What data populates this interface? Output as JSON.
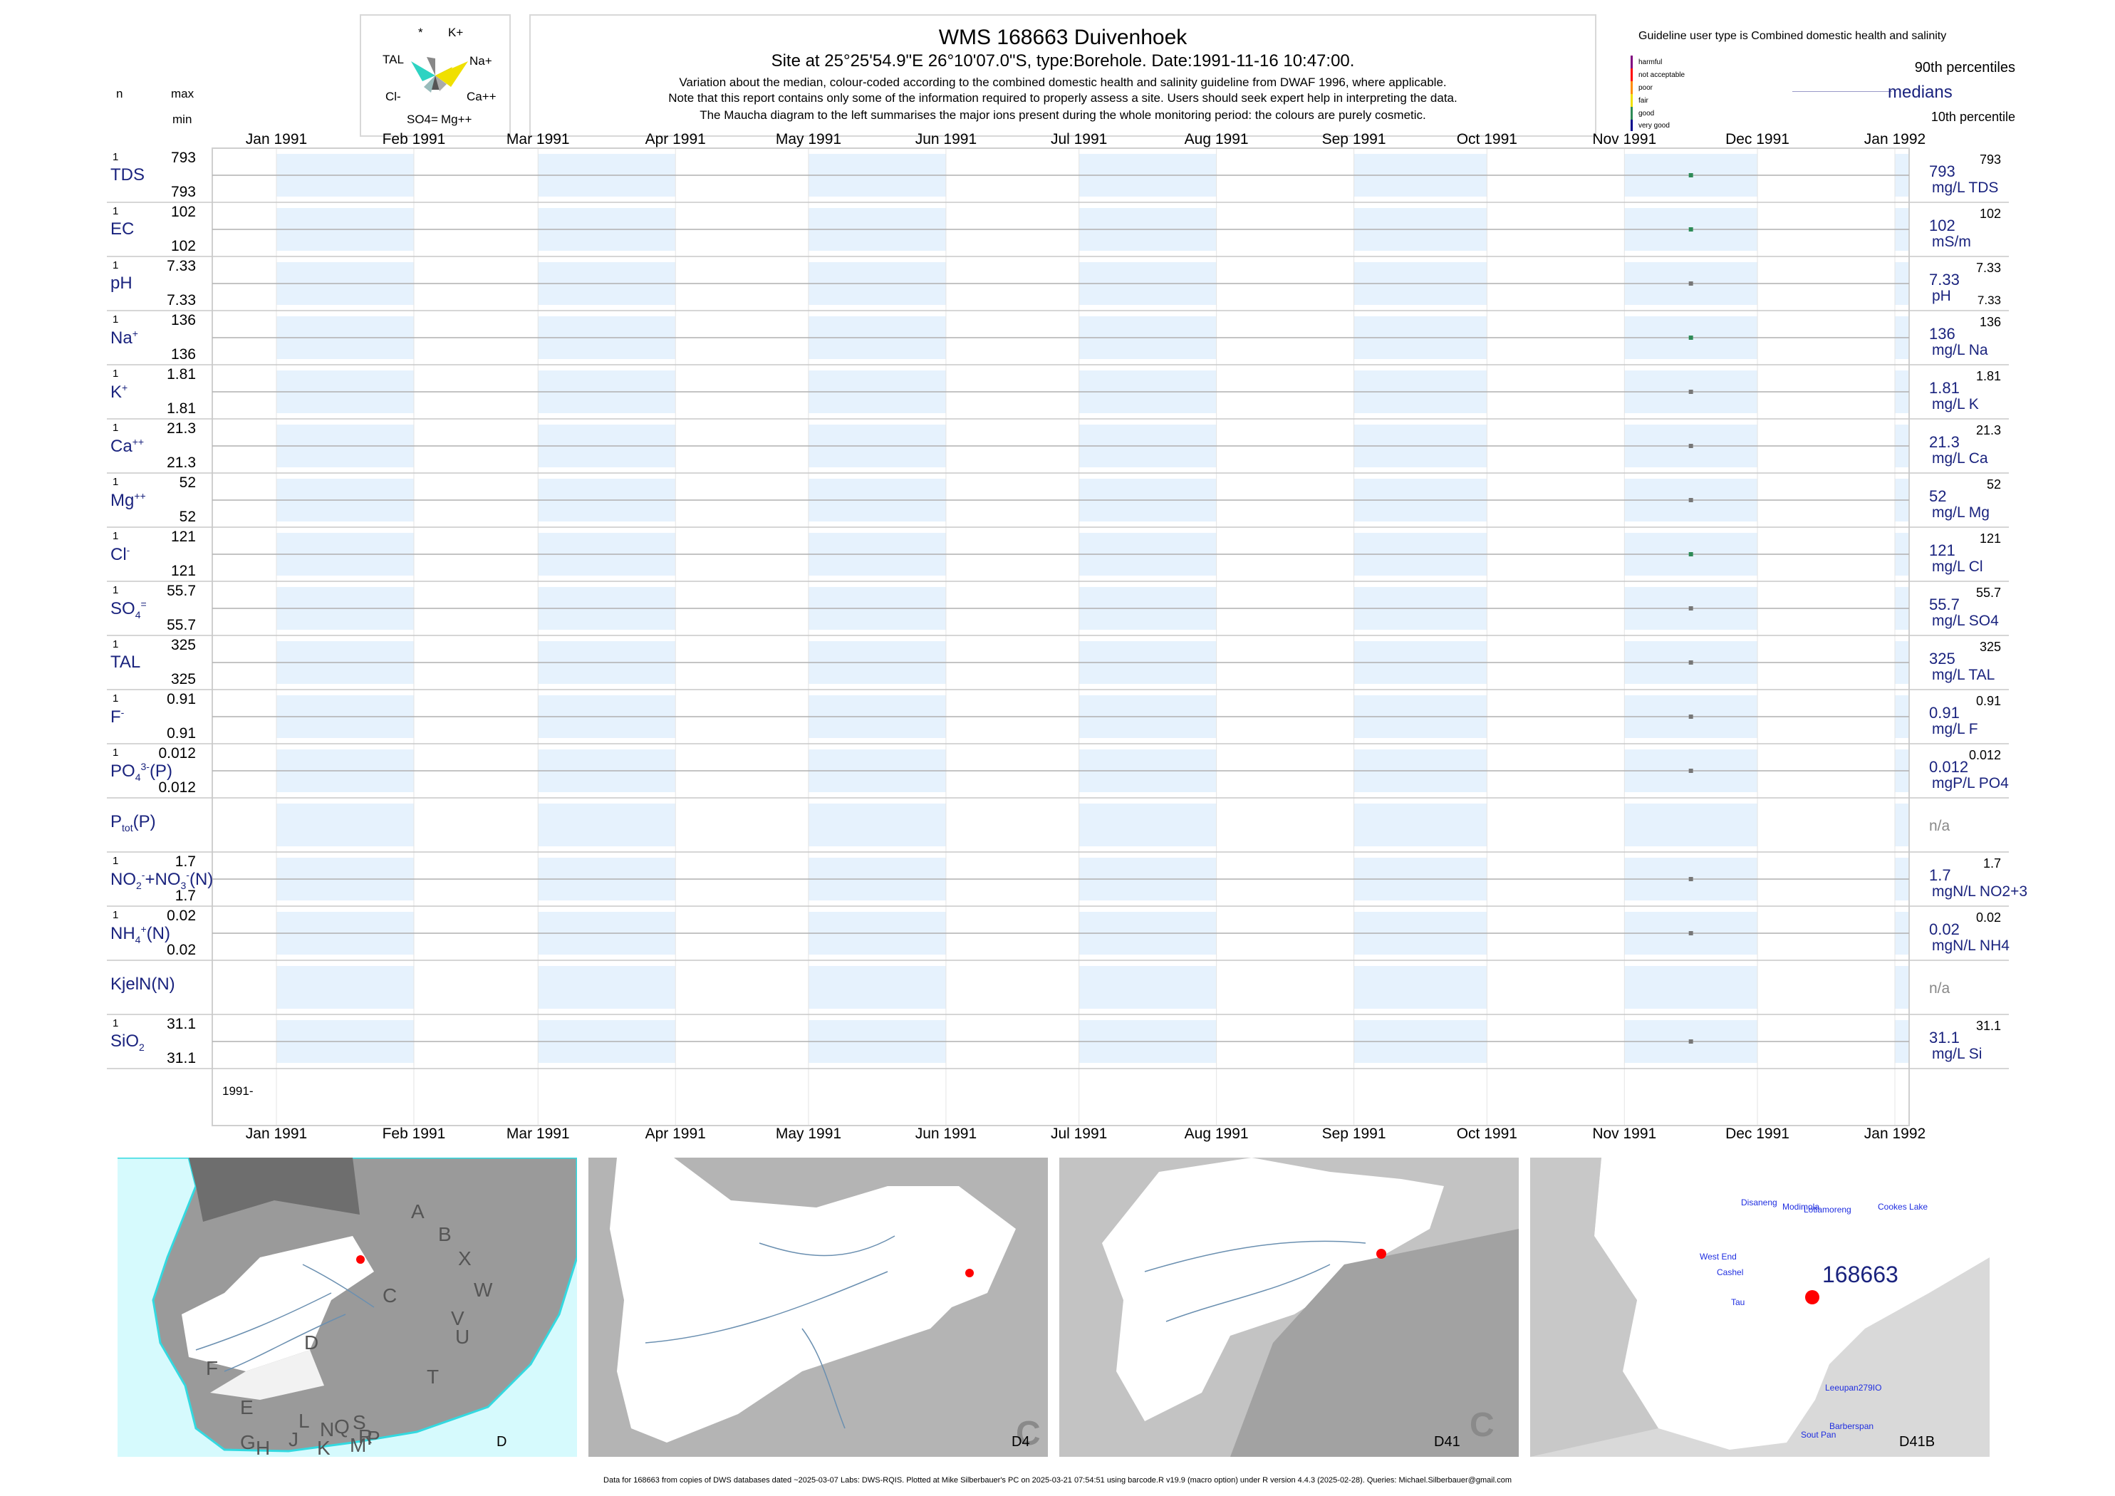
{
  "header": {
    "title": "WMS 168663  Duivenhoek",
    "subtitle": "Site at 25°25'54.9\"E 26°10'07.0\"S, type:Borehole. Date:1991-11-16 10:47:00.",
    "note1": "Variation about the median,  colour-coded according to the combined domestic health and salinity guideline from DWAF 1996, where applicable.",
    "note2": "Note that this report contains only some of the information required to properly assess a site. Users should seek expert help in interpreting the data.",
    "note3": "The Maucha diagram to the left summarises the major ions present during the whole monitoring period: the colours are purely cosmetic."
  },
  "maucha": {
    "labels": [
      "*",
      "K+",
      "TAL",
      "Na+",
      "Cl-",
      "Ca++",
      "SO4=",
      "Mg++"
    ]
  },
  "left_axis": {
    "n": "n",
    "max": "max",
    "min": "min"
  },
  "legend": {
    "guideline": "Guideline user type is Combined domestic health and salinity",
    "classes": [
      "harmful",
      "not acceptable",
      "poor",
      "fair",
      "good",
      "very good"
    ],
    "class_colors": [
      "#800080",
      "#ff0000",
      "#ff8c00",
      "#f0e000",
      "#2e8b57",
      "#00008b"
    ],
    "p90": "90th percentiles",
    "median": "medians",
    "p10": "10th percentile"
  },
  "chart_data": {
    "type": "line",
    "x_axis_months": [
      "Jan 1991",
      "Feb 1991",
      "Mar 1991",
      "Apr 1991",
      "May 1991",
      "Jun 1991",
      "Jul 1991",
      "Aug 1991",
      "Sep 1991",
      "Oct 1991",
      "Nov 1991",
      "Dec 1991",
      "Jan 1992"
    ],
    "x_range": [
      "1991-01-01",
      "1992-01-01"
    ],
    "sample_date": "1991-11-16",
    "year_label": "1991-",
    "series": [
      {
        "name": "TDS",
        "html": "TDS",
        "n": "1",
        "max": "793",
        "min": "793",
        "median": "793",
        "p90": "793",
        "p10": "",
        "unit": "mg/L TDS",
        "value": 793,
        "color": "#2e8b57"
      },
      {
        "name": "EC",
        "html": "EC",
        "n": "1",
        "max": "102",
        "min": "102",
        "median": "102",
        "p90": "102",
        "p10": "",
        "unit": "mS/m",
        "value": 102,
        "color": "#2e8b57"
      },
      {
        "name": "pH",
        "html": "pH",
        "n": "1",
        "max": "7.33",
        "min": "7.33",
        "median": "7.33",
        "p90": "7.33",
        "p10": "7.33",
        "unit": "pH",
        "value": 7.33,
        "color": "#777777"
      },
      {
        "name": "Na+",
        "html": "Na<sup>+</sup>",
        "n": "1",
        "max": "136",
        "min": "136",
        "median": "136",
        "p90": "136",
        "p10": "",
        "unit": "mg/L Na",
        "value": 136,
        "color": "#2e8b57"
      },
      {
        "name": "K+",
        "html": "K<sup>+</sup>",
        "n": "1",
        "max": "1.81",
        "min": "1.81",
        "median": "1.81",
        "p90": "1.81",
        "p10": "",
        "unit": "mg/L K",
        "value": 1.81,
        "color": "#777777"
      },
      {
        "name": "Ca++",
        "html": "Ca<sup>++</sup>",
        "n": "1",
        "max": "21.3",
        "min": "21.3",
        "median": "21.3",
        "p90": "21.3",
        "p10": "",
        "unit": "mg/L Ca",
        "value": 21.3,
        "color": "#777777"
      },
      {
        "name": "Mg++",
        "html": "Mg<sup>++</sup>",
        "n": "1",
        "max": "52",
        "min": "52",
        "median": "52",
        "p90": "52",
        "p10": "",
        "unit": "mg/L Mg",
        "value": 52,
        "color": "#777777"
      },
      {
        "name": "Cl-",
        "html": "Cl<sup>-</sup>",
        "n": "1",
        "max": "121",
        "min": "121",
        "median": "121",
        "p90": "121",
        "p10": "",
        "unit": "mg/L Cl",
        "value": 121,
        "color": "#2e8b57"
      },
      {
        "name": "SO4=",
        "html": "SO<sub>4</sub><sup>=</sup>",
        "n": "1",
        "max": "55.7",
        "min": "55.7",
        "median": "55.7",
        "p90": "55.7",
        "p10": "",
        "unit": "mg/L SO4",
        "value": 55.7,
        "color": "#777777"
      },
      {
        "name": "TAL",
        "html": "TAL",
        "n": "1",
        "max": "325",
        "min": "325",
        "median": "325",
        "p90": "325",
        "p10": "",
        "unit": "mg/L TAL",
        "value": 325,
        "color": "#777777"
      },
      {
        "name": "F-",
        "html": "F<sup>-</sup>",
        "n": "1",
        "max": "0.91",
        "min": "0.91",
        "median": "0.91",
        "p90": "0.91",
        "p10": "",
        "unit": "mg/L F",
        "value": 0.91,
        "color": "#777777"
      },
      {
        "name": "PO4(P)",
        "html": "PO<sub>4</sub><sup>3-</sup>(P)",
        "n": "1",
        "max": "0.012",
        "min": "0.012",
        "median": "0.012",
        "p90": "0.012",
        "p10": "",
        "unit": "mgP/L PO4",
        "value": 0.012,
        "color": "#777777"
      },
      {
        "name": "Ptot(P)",
        "html": "P<sub>tot</sub>(P)",
        "n": "",
        "max": "",
        "min": "",
        "median": "n/a",
        "p90": "",
        "p10": "",
        "unit": "",
        "value": null,
        "color": "#777777"
      },
      {
        "name": "NO2+NO3(N)",
        "html": "NO<sub>2</sub><sup>-</sup>+NO<sub>3</sub><sup>-</sup>(N)",
        "n": "1",
        "max": "1.7",
        "min": "1.7",
        "median": "1.7",
        "p90": "1.7",
        "p10": "",
        "unit": "mgN/L NO2+3",
        "value": 1.7,
        "color": "#777777"
      },
      {
        "name": "NH4(N)",
        "html": "NH<sub>4</sub><sup>+</sup>(N)",
        "n": "1",
        "max": "0.02",
        "min": "0.02",
        "median": "0.02",
        "p90": "0.02",
        "p10": "",
        "unit": "mgN/L NH4",
        "value": 0.02,
        "color": "#777777"
      },
      {
        "name": "KjelN(N)",
        "html": "KjelN(N)",
        "n": "",
        "max": "",
        "min": "",
        "median": "n/a",
        "p90": "",
        "p10": "",
        "unit": "",
        "value": null,
        "color": "#777777"
      },
      {
        "name": "SiO2",
        "html": "SiO<sub>2</sub>",
        "n": "1",
        "max": "31.1",
        "min": "31.1",
        "median": "31.1",
        "p90": "31.1",
        "p10": "",
        "unit": "mg/L Si",
        "value": 31.1,
        "color": "#777777"
      }
    ]
  },
  "maps": {
    "sa_letters": [
      "A",
      "B",
      "X",
      "W",
      "C",
      "V",
      "U",
      "D",
      "T",
      "F",
      "E",
      "L",
      "N",
      "Q",
      "S",
      "R",
      "G",
      "H",
      "J",
      "K",
      "M",
      "P"
    ],
    "panel_labels": [
      "D",
      "D4",
      "D41",
      "D41B"
    ],
    "corner_letter": "C",
    "site_id": "168663",
    "places": [
      "Disaneng",
      "Modimola",
      "Lotlamoreng",
      "Cookes Lake",
      "West End",
      "Cashel",
      "Tau",
      "Leeupan279IO",
      "Barberspan",
      "Sout Pan"
    ]
  },
  "footer": "Data for 168663 from copies of DWS databases dated ~2025-03-07 Labs: DWS-RQIS. Plotted at Mike Silberbauer's PC on 2025-03-21 07:54:51 using barcode.R v19.9 (macro option) under R version 4.4.3 (2025-02-28). Queries: Michael.Silberbauer@gmail.com"
}
